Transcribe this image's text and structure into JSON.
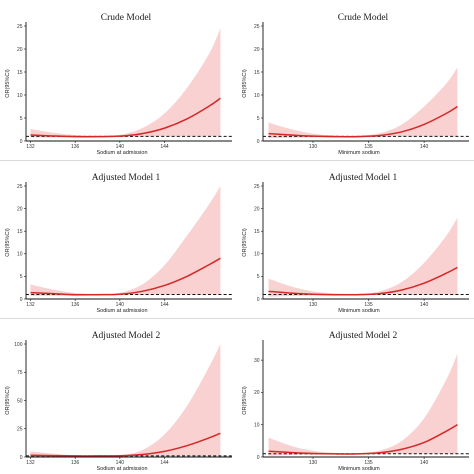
{
  "colors": {
    "curve": "#d62728",
    "band": "#f8c9c9",
    "reference": "#111111"
  },
  "chart_data": [
    {
      "type": "line",
      "title": "Crude Model",
      "xlabel": "Sodium at admission",
      "ylabel": "OR(95%CI)",
      "xlim": [
        131.6,
        149.5
      ],
      "ylim": [
        0,
        25
      ],
      "xticks": [
        132,
        136,
        140,
        144
      ],
      "yticks": [
        0,
        5,
        10,
        15,
        20,
        25
      ],
      "reference_y": 1,
      "legend": "none",
      "grid": false,
      "series": [
        {
          "x": [
            132,
            134,
            136,
            138,
            140,
            142,
            144,
            146,
            148,
            149
          ],
          "y": [
            1.3,
            1.1,
            0.95,
            0.95,
            1.05,
            1.6,
            2.8,
            4.8,
            7.6,
            9.3
          ],
          "lower": [
            0.8,
            0.75,
            0.75,
            0.8,
            0.85,
            0.95,
            1.0,
            1.0,
            1.0,
            1.0
          ],
          "upper": [
            2.6,
            1.8,
            1.3,
            1.15,
            1.35,
            2.8,
            6.0,
            11.5,
            19.0,
            24.5
          ]
        }
      ]
    },
    {
      "type": "line",
      "title": "Crude Model",
      "xlabel": "Minimum sodium",
      "ylabel": "OR(95%CI)",
      "xlim": [
        125.5,
        143.5
      ],
      "ylim": [
        0,
        25
      ],
      "xticks": [
        130,
        135,
        140
      ],
      "yticks": [
        0,
        5,
        10,
        15,
        20,
        25
      ],
      "reference_y": 1,
      "legend": "none",
      "grid": false,
      "series": [
        {
          "x": [
            126,
            128,
            130,
            132,
            134,
            136,
            138,
            140,
            142,
            143
          ],
          "y": [
            1.6,
            1.3,
            1.05,
            0.95,
            0.95,
            1.2,
            2.0,
            3.6,
            6.0,
            7.5
          ],
          "lower": [
            0.6,
            0.7,
            0.75,
            0.8,
            0.8,
            0.9,
            1.0,
            1.0,
            1.0,
            1.0
          ],
          "upper": [
            4.0,
            2.6,
            1.6,
            1.2,
            1.15,
            1.7,
            3.6,
            7.5,
            12.5,
            16.0
          ]
        }
      ]
    },
    {
      "type": "line",
      "title": "Adjusted Model 1",
      "xlabel": "Sodium at admission",
      "ylabel": "OR(95%CI)",
      "xlim": [
        131.6,
        149.5
      ],
      "ylim": [
        0,
        25
      ],
      "xticks": [
        132,
        136,
        140,
        144
      ],
      "yticks": [
        0,
        5,
        10,
        15,
        20,
        25
      ],
      "reference_y": 1,
      "legend": "none",
      "grid": false,
      "series": [
        {
          "x": [
            132,
            134,
            136,
            138,
            140,
            142,
            144,
            146,
            148,
            149
          ],
          "y": [
            1.4,
            1.2,
            0.95,
            0.95,
            1.05,
            1.7,
            3.0,
            5.0,
            7.6,
            9.0
          ],
          "lower": [
            0.7,
            0.7,
            0.7,
            0.8,
            0.85,
            0.95,
            1.0,
            1.0,
            1.0,
            1.0
          ],
          "upper": [
            3.2,
            2.1,
            1.35,
            1.15,
            1.4,
            3.2,
            7.5,
            14.0,
            21.0,
            25.0
          ]
        }
      ]
    },
    {
      "type": "line",
      "title": "Adjusted Model 1",
      "xlabel": "Minimum sodium",
      "ylabel": "OR(95%CI)",
      "xlim": [
        125.5,
        143.5
      ],
      "ylim": [
        0,
        25
      ],
      "xticks": [
        130,
        135,
        140
      ],
      "yticks": [
        0,
        5,
        10,
        15,
        20,
        25
      ],
      "reference_y": 1,
      "legend": "none",
      "grid": false,
      "series": [
        {
          "x": [
            126,
            128,
            130,
            132,
            134,
            136,
            138,
            140,
            142,
            143
          ],
          "y": [
            1.7,
            1.3,
            1.05,
            0.95,
            0.95,
            1.2,
            2.0,
            3.5,
            5.7,
            7.0
          ],
          "lower": [
            0.5,
            0.65,
            0.75,
            0.8,
            0.8,
            0.9,
            1.0,
            1.0,
            1.0,
            1.0
          ],
          "upper": [
            4.5,
            2.8,
            1.7,
            1.25,
            1.15,
            1.7,
            3.8,
            8.0,
            14.0,
            18.0
          ]
        }
      ]
    },
    {
      "type": "line",
      "title": "Adjusted Model 2",
      "xlabel": "Sodium at admission",
      "ylabel": "OR(95%CI)",
      "xlim": [
        131.6,
        149.5
      ],
      "ylim": [
        0,
        100
      ],
      "xticks": [
        132,
        136,
        140,
        144
      ],
      "yticks": [
        0,
        25,
        50,
        75,
        100
      ],
      "reference_y": 1,
      "legend": "none",
      "grid": false,
      "series": [
        {
          "x": [
            132,
            134,
            136,
            138,
            140,
            142,
            144,
            146,
            148,
            149
          ],
          "y": [
            1.5,
            1.2,
            0.95,
            0.95,
            1.1,
            2.2,
            5.0,
            10.0,
            17.0,
            21.0
          ],
          "lower": [
            0.5,
            0.6,
            0.7,
            0.8,
            0.85,
            0.95,
            1.0,
            1.0,
            1.0,
            1.0
          ],
          "upper": [
            5.0,
            3.0,
            1.5,
            1.2,
            1.6,
            6.0,
            20.0,
            45.0,
            80.0,
            100.0
          ]
        }
      ]
    },
    {
      "type": "line",
      "title": "Adjusted Model 2",
      "xlabel": "Minimum sodium",
      "ylabel": "OR(95%CI)",
      "xlim": [
        125.5,
        143.5
      ],
      "ylim": [
        0,
        35
      ],
      "xticks": [
        130,
        135,
        140
      ],
      "yticks": [
        0,
        10,
        20,
        30
      ],
      "reference_y": 1,
      "legend": "none",
      "grid": false,
      "series": [
        {
          "x": [
            126,
            128,
            130,
            132,
            134,
            136,
            138,
            140,
            142,
            143
          ],
          "y": [
            1.8,
            1.4,
            1.1,
            0.95,
            0.95,
            1.3,
            2.4,
            4.5,
            8.0,
            10.0
          ],
          "lower": [
            0.4,
            0.6,
            0.7,
            0.8,
            0.8,
            0.9,
            1.0,
            1.0,
            1.0,
            1.0
          ],
          "upper": [
            6.0,
            3.5,
            1.9,
            1.3,
            1.2,
            2.0,
            5.0,
            12.0,
            24.0,
            32.0
          ]
        }
      ]
    }
  ]
}
